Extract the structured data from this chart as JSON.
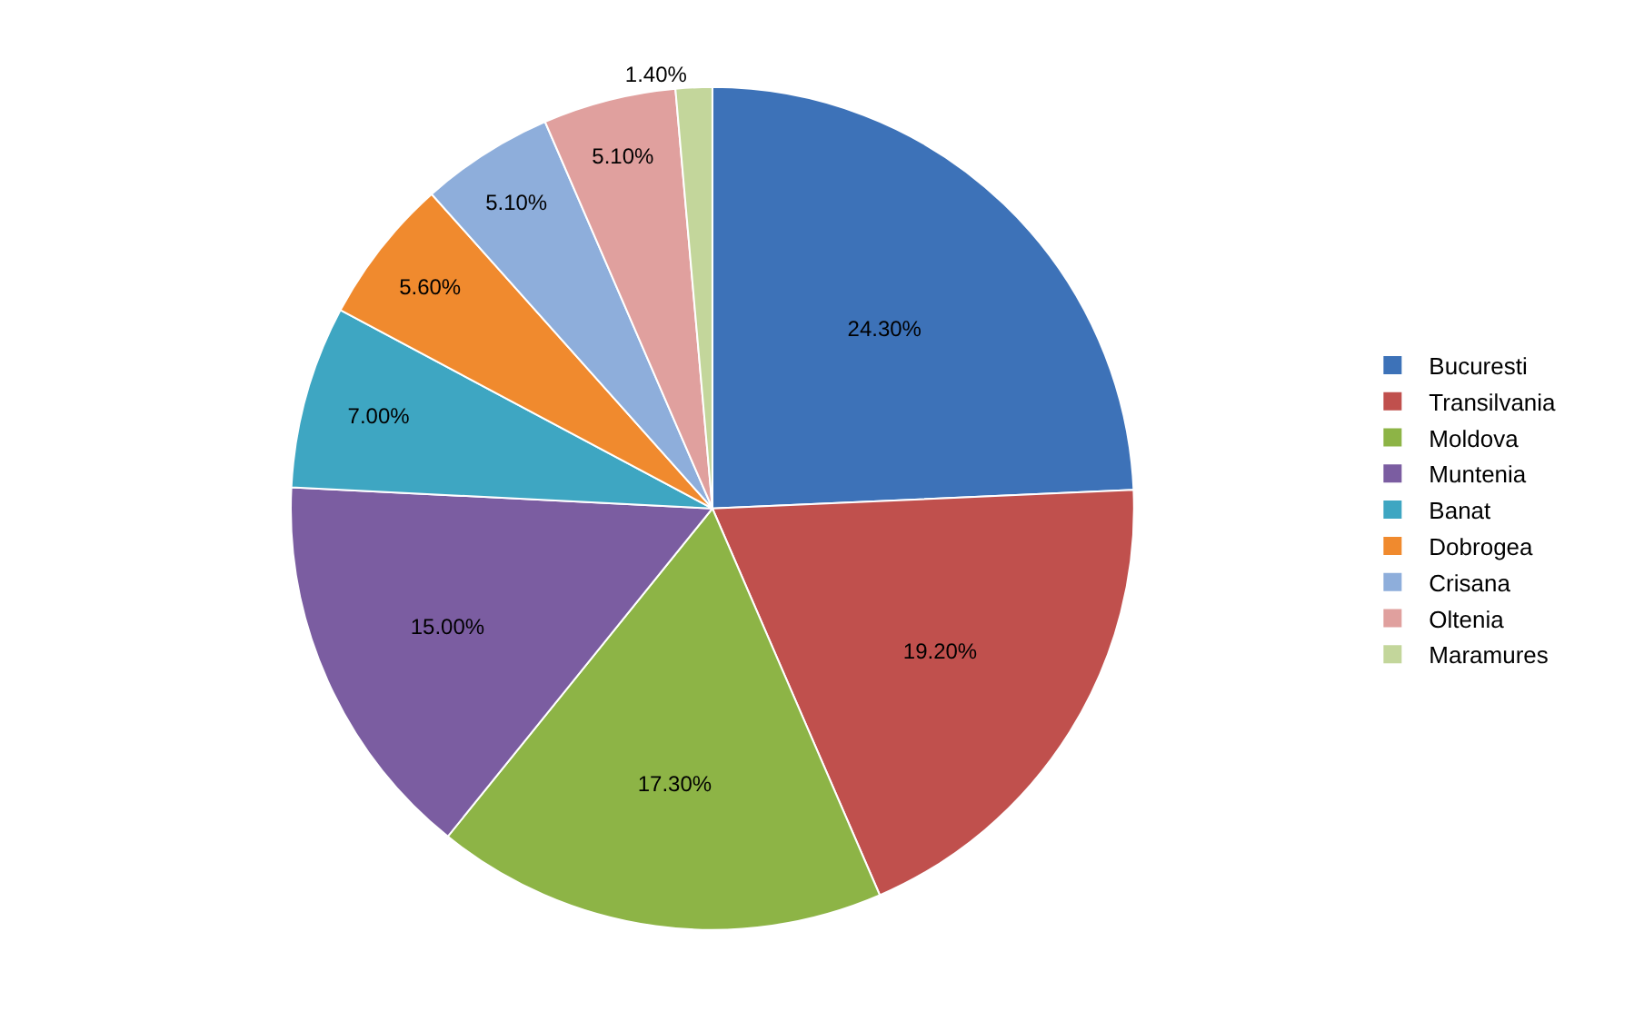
{
  "chart_data": {
    "type": "pie",
    "categories": [
      "Bucuresti",
      "Transilvania",
      "Moldova",
      "Muntenia",
      "Banat",
      "Dobrogea",
      "Crisana",
      "Oltenia",
      "Maramures"
    ],
    "values": [
      24.3,
      19.2,
      17.3,
      15.0,
      7.0,
      5.6,
      5.1,
      5.1,
      1.4
    ],
    "value_labels": [
      "24.30%",
      "19.20%",
      "17.30%",
      "15.00%",
      "7.00%",
      "5.60%",
      "5.10%",
      "5.10%",
      "1.40%"
    ],
    "colors": [
      "#3d72b8",
      "#c0504d",
      "#8db446",
      "#7b5da1",
      "#3ea6c2",
      "#f08a2e",
      "#8eaedb",
      "#e0a09e",
      "#c3d69b"
    ],
    "legend": "right"
  }
}
